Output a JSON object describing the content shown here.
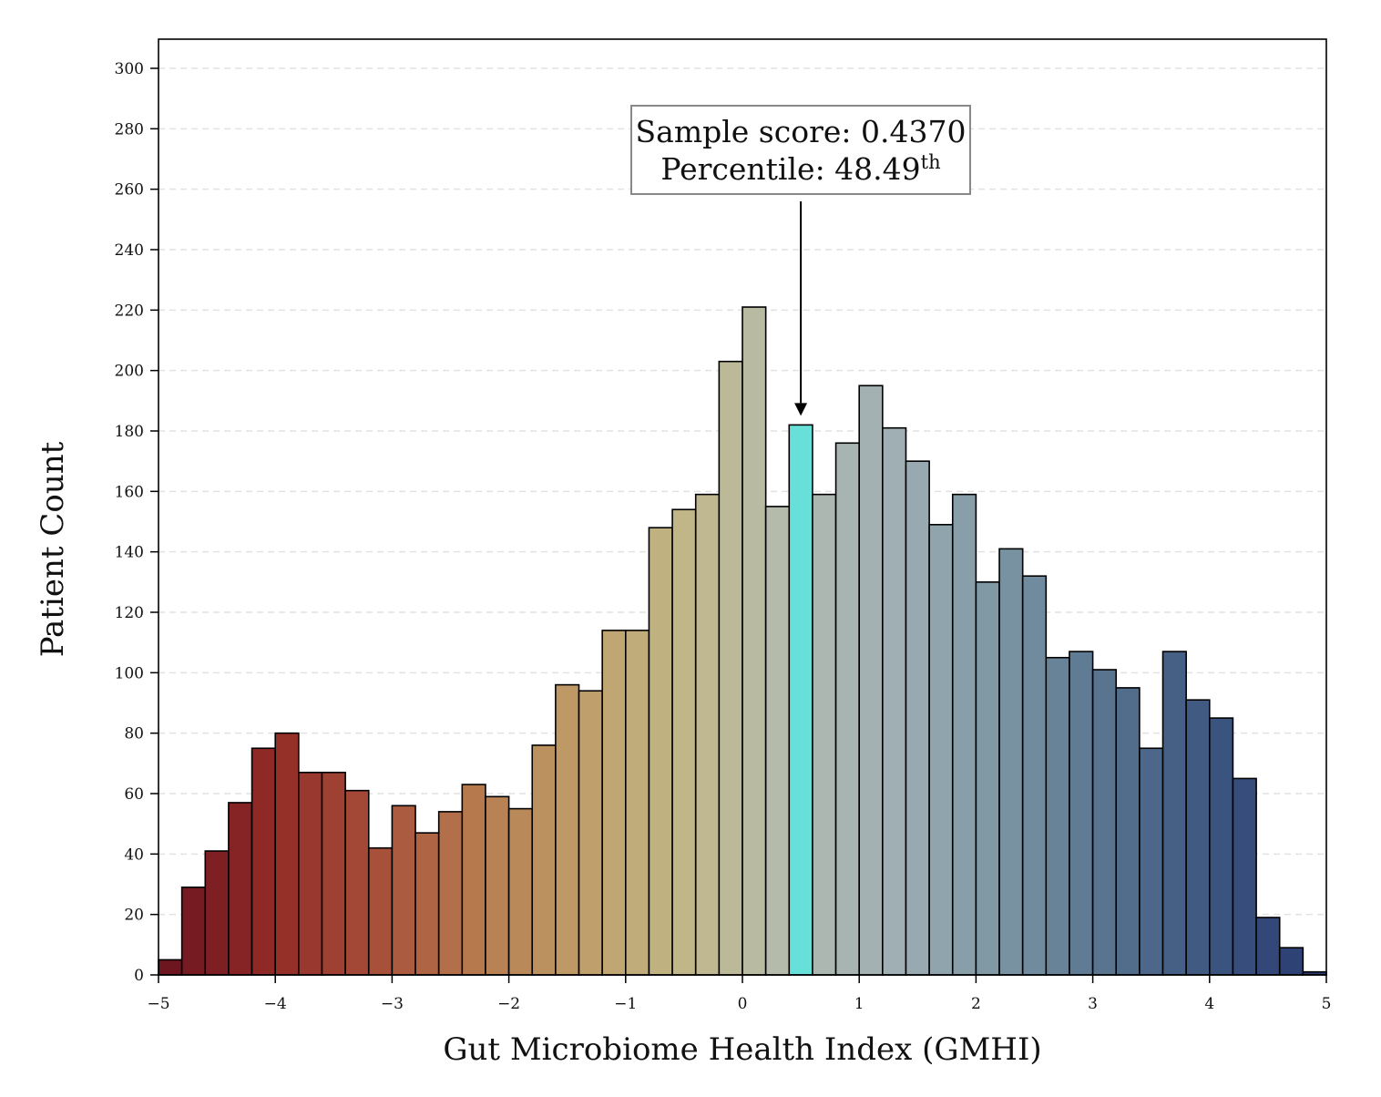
{
  "chart_data": {
    "type": "bar",
    "title": "",
    "xlabel": "Gut Microbiome Health Index (GMHI)",
    "ylabel": "Patient Count",
    "xlim": [
      -5,
      5
    ],
    "ylim": [
      0,
      310
    ],
    "bin_width": 0.2,
    "bin_start": -5,
    "x_ticks": [
      "−5",
      "−4",
      "−3",
      "−2",
      "−1",
      "0",
      "1",
      "2",
      "3",
      "4",
      "5"
    ],
    "x_tick_values": [
      -5,
      -4,
      -3,
      -2,
      -1,
      0,
      1,
      2,
      3,
      4,
      5
    ],
    "y_ticks": [
      0,
      20,
      40,
      60,
      80,
      100,
      120,
      140,
      160,
      180,
      200,
      220,
      240,
      260,
      280,
      300
    ],
    "grid": "horizontal dashed",
    "values": [
      5,
      29,
      41,
      57,
      75,
      80,
      67,
      67,
      61,
      42,
      56,
      47,
      54,
      63,
      59,
      55,
      76,
      96,
      94,
      114,
      114,
      148,
      154,
      159,
      203,
      221,
      155,
      182,
      159,
      176,
      195,
      181,
      170,
      149,
      159,
      130,
      141,
      132,
      105,
      107,
      101,
      95,
      75,
      107,
      91,
      85,
      65,
      19,
      9,
      1
    ],
    "highlight_index": 27,
    "highlight_color": "#66e0d8",
    "colormap": [
      "#6e1620",
      "#922b27",
      "#a7503a",
      "#b77d50",
      "#bf9f6b",
      "#c1b88a",
      "#b3bbb0",
      "#9eaeb4",
      "#7b95a3",
      "#57738f",
      "#3d5680",
      "#2b3c73"
    ],
    "annotation": {
      "line1": "Sample score: 0.4370",
      "line2_prefix": "Percentile: 48.49",
      "line2_sup": "th",
      "x": 0.5,
      "y": 185
    }
  }
}
